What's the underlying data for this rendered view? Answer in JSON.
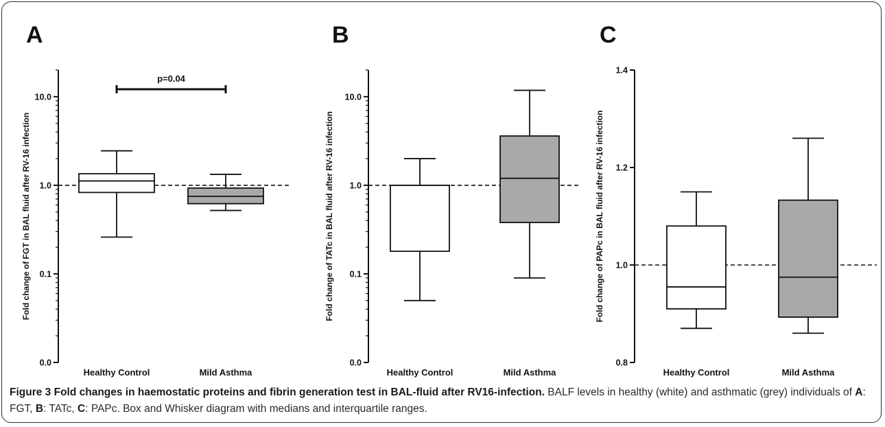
{
  "chart_data": [
    {
      "type": "box",
      "panel_label": "A",
      "ylabel": "Fold change of FGT in BAL fluid after RV-16 infection",
      "y_scale": "log",
      "ylim": [
        0.01,
        20
      ],
      "y_ticks": [
        {
          "value": 0.01,
          "label": "0.0"
        },
        {
          "value": 0.1,
          "label": "0.1"
        },
        {
          "value": 1,
          "label": "1.0"
        },
        {
          "value": 10,
          "label": "10.0"
        }
      ],
      "reference_line": 1,
      "categories": [
        "Healthy Control",
        "Mild Asthma"
      ],
      "boxes": [
        {
          "category": "Healthy Control",
          "min": 0.26,
          "q1": 0.83,
          "median": 1.12,
          "q3": 1.35,
          "max": 2.45,
          "fill": "#ffffff"
        },
        {
          "category": "Mild Asthma",
          "min": 0.52,
          "q1": 0.62,
          "median": 0.75,
          "q3": 0.93,
          "max": 1.33,
          "fill": "#a9a9a9"
        }
      ],
      "annotation": {
        "text": "p=0.04"
      }
    },
    {
      "type": "box",
      "panel_label": "B",
      "ylabel": "Fold change of TATc in BAL fluid after RV-16 infection",
      "y_scale": "log",
      "ylim": [
        0.01,
        20
      ],
      "y_ticks": [
        {
          "value": 0.01,
          "label": "0.0"
        },
        {
          "value": 0.1,
          "label": "0.1"
        },
        {
          "value": 1,
          "label": "1.0"
        },
        {
          "value": 10,
          "label": "10.0"
        }
      ],
      "reference_line": 1,
      "categories": [
        "Healthy Control",
        "Mild Asthma"
      ],
      "boxes": [
        {
          "category": "Healthy Control",
          "min": 0.05,
          "q1": 0.18,
          "median": 1.0,
          "q3": 1.0,
          "max": 2.0,
          "fill": "#ffffff"
        },
        {
          "category": "Mild Asthma",
          "min": 0.09,
          "q1": 0.38,
          "median": 1.2,
          "q3": 3.6,
          "max": 11.8,
          "fill": "#a9a9a9"
        }
      ]
    },
    {
      "type": "box",
      "panel_label": "C",
      "ylabel": "Fold change of PAPc in BAL fluid after RV-16 infection",
      "y_scale": "linear",
      "ylim": [
        0.8,
        1.4
      ],
      "y_ticks": [
        {
          "value": 0.8,
          "label": "0.8"
        },
        {
          "value": 1.0,
          "label": "1.0"
        },
        {
          "value": 1.2,
          "label": "1.2"
        },
        {
          "value": 1.4,
          "label": "1.4"
        }
      ],
      "reference_line": 1,
      "categories": [
        "Healthy Control",
        "Mild Asthma"
      ],
      "boxes": [
        {
          "category": "Healthy Control",
          "min": 0.87,
          "q1": 0.91,
          "median": 0.955,
          "q3": 1.08,
          "max": 1.15,
          "fill": "#ffffff"
        },
        {
          "category": "Mild Asthma",
          "min": 0.86,
          "q1": 0.893,
          "median": 0.975,
          "q3": 1.133,
          "max": 1.26,
          "fill": "#a9a9a9"
        }
      ]
    }
  ],
  "caption": {
    "title": "Figure 3 Fold changes in haemostatic proteins and fibrin generation test in BAL-fluid after RV16-infection.",
    "text_1": " BALF levels in healthy (white) and asthmatic (grey) individuals of ",
    "label_a": "A",
    "text_a": ": FGT, ",
    "label_b": "B",
    "text_b": ": TATc, ",
    "label_c": "C",
    "text_c": ": PAPc. Box and Whisker diagram with medians and interquartile ranges."
  }
}
